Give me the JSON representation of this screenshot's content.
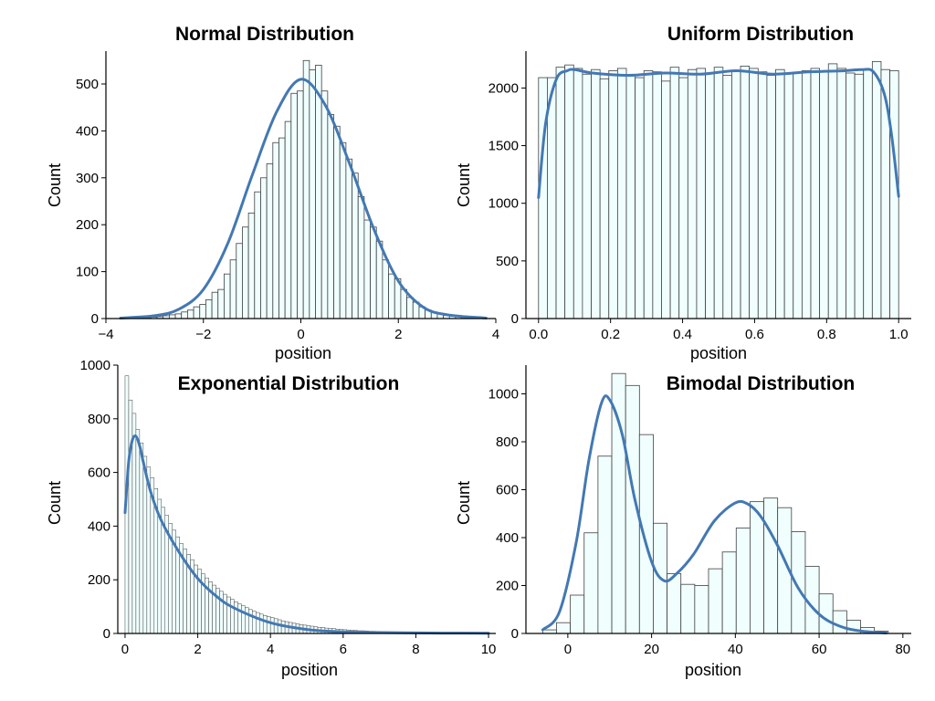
{
  "colors": {
    "bar_fill": "#f0fffe",
    "bar_edge": "#404040",
    "kde": "#4378b3",
    "axis": "#000000"
  },
  "chart_data": [
    {
      "type": "histogram",
      "title": "Normal Distribution",
      "xlabel": "position",
      "ylabel": "Count",
      "xlim": [
        -4,
        4
      ],
      "ylim": [
        0,
        570
      ],
      "xticks": [
        -4,
        -2,
        0,
        2,
        4
      ],
      "xtick_labels": [
        "−4",
        "−2",
        "0",
        "2",
        "4"
      ],
      "yticks": [
        0,
        100,
        200,
        300,
        400,
        500
      ],
      "ytick_labels": [
        "0",
        "100",
        "200",
        "300",
        "400",
        "500"
      ],
      "bin_edges_range": [
        -3.7,
        3.8
      ],
      "counts": [
        1,
        1,
        1,
        2,
        2,
        3,
        4,
        6,
        8,
        10,
        14,
        18,
        25,
        30,
        40,
        56,
        62,
        95,
        125,
        160,
        195,
        225,
        270,
        300,
        330,
        375,
        385,
        420,
        480,
        485,
        550,
        530,
        540,
        485,
        435,
        410,
        375,
        340,
        310,
        260,
        210,
        195,
        165,
        125,
        95,
        85,
        62,
        45,
        35,
        25,
        18,
        14,
        10,
        7,
        6,
        4,
        3,
        2,
        1,
        1
      ],
      "kde": {
        "x": [
          -3.7,
          -3.0,
          -2.5,
          -2.0,
          -1.5,
          -1.0,
          -0.5,
          0.0,
          0.5,
          1.0,
          1.5,
          2.0,
          2.5,
          3.0,
          3.8
        ],
        "y": [
          1,
          6,
          20,
          62,
          160,
          305,
          440,
          510,
          455,
          330,
          190,
          80,
          25,
          8,
          1
        ]
      }
    },
    {
      "type": "histogram",
      "title": "Uniform Distribution",
      "xlabel": "position",
      "ylabel": "Count",
      "xlim": [
        -0.035,
        1.035
      ],
      "ylim": [
        0,
        2320
      ],
      "xticks": [
        0,
        0.2,
        0.4,
        0.6,
        0.8,
        1.0
      ],
      "xtick_labels": [
        "0.0",
        "0.2",
        "0.4",
        "0.6",
        "0.8",
        "1.0"
      ],
      "yticks": [
        0,
        500,
        1000,
        1500,
        2000
      ],
      "ytick_labels": [
        "0",
        "500",
        "1000",
        "1500",
        "2000"
      ],
      "bin_edges_range": [
        0,
        1
      ],
      "counts": [
        2090,
        2090,
        2180,
        2200,
        2170,
        2120,
        2160,
        2080,
        2150,
        2170,
        2110,
        2090,
        2150,
        2140,
        2060,
        2180,
        2090,
        2160,
        2170,
        2130,
        2180,
        2110,
        2150,
        2190,
        2170,
        2140,
        2110,
        2160,
        2130,
        2130,
        2150,
        2170,
        2140,
        2210,
        2170,
        2130,
        2120,
        2160,
        2230,
        2160,
        2150
      ],
      "kde": {
        "x": [
          0,
          0.02,
          0.05,
          0.08,
          0.1,
          0.15,
          0.25,
          0.35,
          0.45,
          0.55,
          0.65,
          0.75,
          0.85,
          0.9,
          0.93,
          0.96,
          0.98,
          1.0
        ],
        "y": [
          1050,
          1700,
          2080,
          2150,
          2160,
          2130,
          2110,
          2130,
          2120,
          2150,
          2120,
          2140,
          2150,
          2160,
          2140,
          1950,
          1600,
          1060
        ]
      }
    },
    {
      "type": "histogram",
      "title": "Exponential Distribution",
      "xlabel": "position",
      "ylabel": "Count",
      "xlim": [
        -0.2,
        10.2
      ],
      "ylim": [
        0,
        1000
      ],
      "xticks": [
        0,
        2,
        4,
        6,
        8,
        10
      ],
      "xtick_labels": [
        "0",
        "2",
        "4",
        "6",
        "8",
        "10"
      ],
      "yticks": [
        0,
        200,
        400,
        600,
        800,
        1000
      ],
      "ytick_labels": [
        "0",
        "200",
        "400",
        "600",
        "800",
        "1000"
      ],
      "bin_edges_range": [
        0,
        10
      ],
      "counts": [
        960,
        870,
        820,
        760,
        710,
        660,
        620,
        580,
        540,
        500,
        470,
        440,
        410,
        385,
        360,
        335,
        315,
        295,
        275,
        255,
        240,
        222,
        207,
        193,
        180,
        168,
        157,
        146,
        136,
        127,
        118,
        110,
        103,
        96,
        89,
        83,
        78,
        72,
        67,
        63,
        59,
        55,
        51,
        47,
        44,
        41,
        38,
        36,
        33,
        31,
        29,
        27,
        25,
        23,
        22,
        20,
        19,
        18,
        16,
        15,
        14,
        13,
        12,
        11,
        10,
        10,
        9,
        8,
        8,
        7,
        7,
        6,
        6,
        5,
        5,
        5,
        4,
        4,
        4,
        3,
        3,
        3,
        3,
        2,
        2,
        2,
        2,
        2,
        2,
        2,
        1,
        1,
        1,
        1,
        1,
        1,
        1,
        1,
        1,
        1
      ],
      "kde": {
        "x": [
          0,
          0.1,
          0.2,
          0.3,
          0.4,
          0.5,
          0.7,
          1.0,
          1.5,
          2.0,
          2.5,
          3.0,
          4.0,
          5.0,
          6.0,
          8.0,
          10.0
        ],
        "y": [
          450,
          640,
          720,
          735,
          700,
          640,
          530,
          420,
          300,
          205,
          140,
          95,
          40,
          15,
          6,
          2,
          1
        ]
      }
    },
    {
      "type": "histogram",
      "title": "Bimodal Distribution",
      "xlabel": "position",
      "ylabel": "Count",
      "xlim": [
        -10,
        82
      ],
      "ylim": [
        0,
        1120
      ],
      "xticks": [
        0,
        20,
        40,
        60,
        80
      ],
      "xtick_labels": [
        "0",
        "20",
        "40",
        "60",
        "80"
      ],
      "yticks": [
        0,
        200,
        400,
        600,
        800,
        1000
      ],
      "ytick_labels": [
        "0",
        "200",
        "400",
        "600",
        "800",
        "1000"
      ],
      "bin_edges_range": [
        -6,
        76.5
      ],
      "counts": [
        15,
        45,
        160,
        420,
        740,
        1085,
        1035,
        830,
        460,
        250,
        205,
        200,
        270,
        340,
        440,
        550,
        565,
        525,
        425,
        280,
        165,
        95,
        55,
        25,
        10
      ],
      "kde": {
        "x": [
          -6,
          -2,
          2,
          5,
          8,
          10,
          13,
          16,
          20,
          23,
          26,
          30,
          35,
          40,
          43,
          46,
          50,
          55,
          60,
          65,
          70,
          76
        ],
        "y": [
          15,
          90,
          380,
          720,
          960,
          975,
          830,
          560,
          300,
          220,
          250,
          330,
          470,
          545,
          540,
          490,
          370,
          190,
          80,
          30,
          10,
          2
        ]
      }
    }
  ]
}
